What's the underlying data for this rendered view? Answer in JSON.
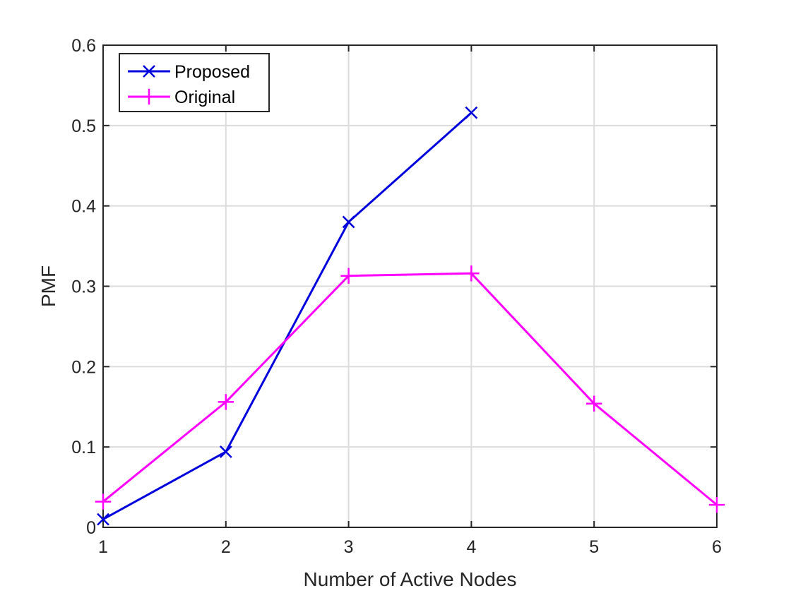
{
  "chart_data": {
    "type": "line",
    "xlabel": "Number of Active Nodes",
    "ylabel": "PMF",
    "xlim": [
      1,
      6
    ],
    "ylim": [
      0,
      0.6
    ],
    "x_ticks": [
      "1",
      "2",
      "3",
      "4",
      "5",
      "6"
    ],
    "y_ticks": [
      "0",
      "0.1",
      "0.2",
      "0.3",
      "0.4",
      "0.5",
      "0.6"
    ],
    "grid": true,
    "legend_position": "top-left",
    "series": [
      {
        "name": "Proposed",
        "color": "#0000dd",
        "marker": "x",
        "x": [
          1,
          2,
          3,
          4
        ],
        "y": [
          0.01,
          0.094,
          0.38,
          0.516
        ]
      },
      {
        "name": "Original",
        "color": "#ff00ff",
        "marker": "plus",
        "x": [
          1,
          2,
          3,
          4,
          5,
          6
        ],
        "y": [
          0.032,
          0.156,
          0.313,
          0.316,
          0.154,
          0.028
        ]
      }
    ]
  }
}
